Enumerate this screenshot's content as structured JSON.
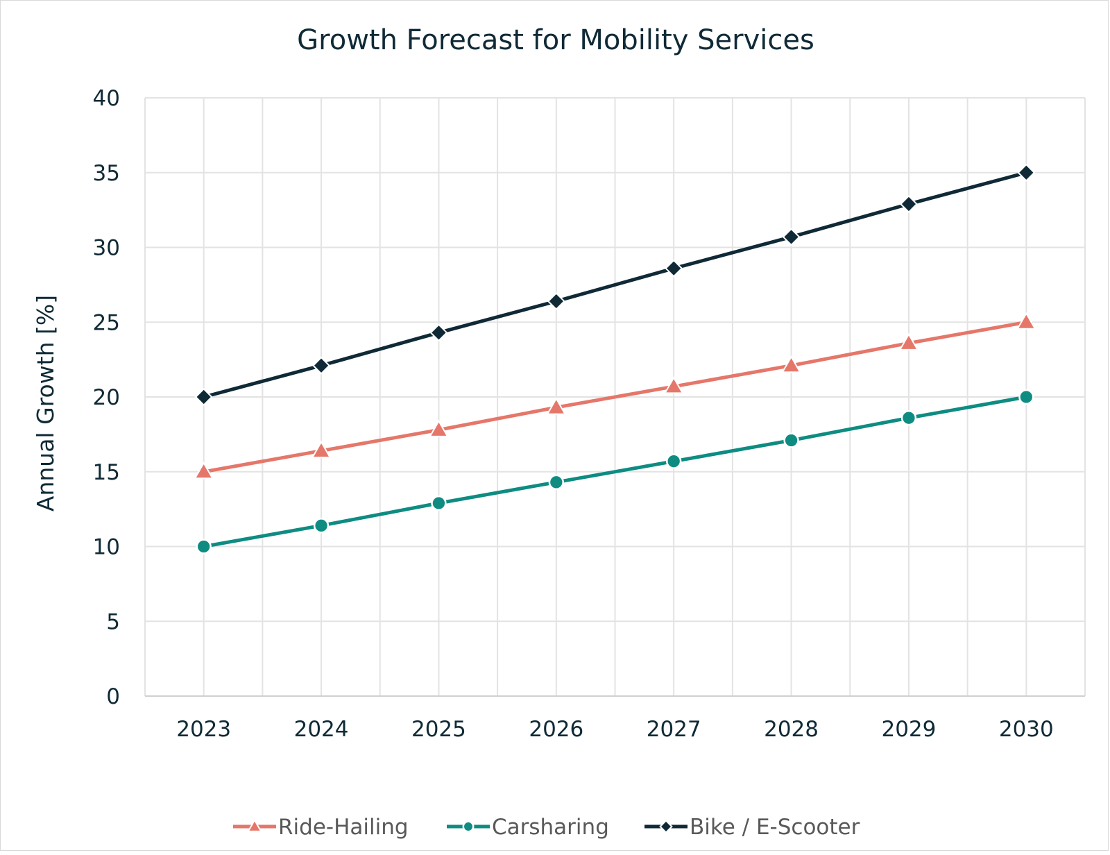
{
  "chart_data": {
    "type": "line",
    "title": "Growth Forecast for Mobility Services",
    "xlabel": "",
    "ylabel": "Annual Growth [%]",
    "categories": [
      "2023",
      "2024",
      "2025",
      "2026",
      "2027",
      "2028",
      "2029",
      "2030"
    ],
    "ylim": [
      0,
      40
    ],
    "yticks": [
      "0",
      "5",
      "10",
      "15",
      "20",
      "25",
      "30",
      "35",
      "40"
    ],
    "grid": true,
    "legend_position": "bottom",
    "series": [
      {
        "name": "Ride-Hailing",
        "color": "#e5776a",
        "marker": "triangle",
        "values": [
          15.0,
          16.4,
          17.8,
          19.3,
          20.7,
          22.1,
          23.6,
          25.0
        ]
      },
      {
        "name": "Carsharing",
        "color": "#0e8c82",
        "marker": "circle",
        "values": [
          10.0,
          11.4,
          12.9,
          14.3,
          15.7,
          17.1,
          18.6,
          20.0
        ]
      },
      {
        "name": "Bike / E-Scooter",
        "color": "#0f2a36",
        "marker": "diamond",
        "values": [
          20.0,
          22.1,
          24.3,
          26.4,
          28.6,
          30.7,
          32.9,
          35.0
        ]
      }
    ]
  }
}
